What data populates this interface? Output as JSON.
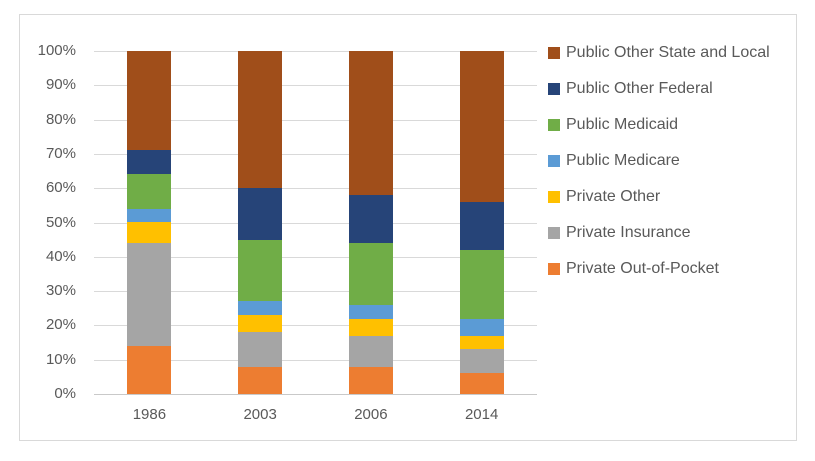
{
  "chart": {
    "title": "",
    "style": {
      "background_color": "#FFFFFF",
      "frame_border_color": "#D9D9D9",
      "gridline_color": "#D9D9D9",
      "axis_line_color": "#C9C9C9",
      "text_color": "#595959"
    }
  },
  "chart_data": {
    "type": "bar",
    "subtype": "stacked-100-percent",
    "title": "",
    "xlabel": "",
    "ylabel": "",
    "categories": [
      "1986",
      "2003",
      "2006",
      "2014"
    ],
    "series": [
      {
        "name": "Public Other State and Local",
        "color": "#A04E1A",
        "values": [
          29,
          40,
          42,
          44
        ]
      },
      {
        "name": "Public Other Federal",
        "color": "#264478",
        "values": [
          7,
          15,
          14,
          14
        ]
      },
      {
        "name": "Public Medicaid",
        "color": "#70AD47",
        "values": [
          10,
          18,
          18,
          20
        ]
      },
      {
        "name": "Public Medicare",
        "color": "#5B9BD5",
        "values": [
          4,
          4,
          4,
          5
        ]
      },
      {
        "name": "Private Other",
        "color": "#FFC000",
        "values": [
          6,
          5,
          5,
          4
        ]
      },
      {
        "name": "Private Insurance",
        "color": "#A5A5A5",
        "values": [
          30,
          10,
          9,
          7
        ]
      },
      {
        "name": "Private Out-of-Pocket",
        "color": "#ED7D31",
        "values": [
          14,
          8,
          8,
          6
        ]
      }
    ],
    "ylim": [
      0,
      100
    ],
    "y_ticks": [
      "100%",
      "90%",
      "80%",
      "70%",
      "60%",
      "50%",
      "40%",
      "30%",
      "20%",
      "10%",
      "0%"
    ],
    "grid": true,
    "legend_position": "right"
  }
}
